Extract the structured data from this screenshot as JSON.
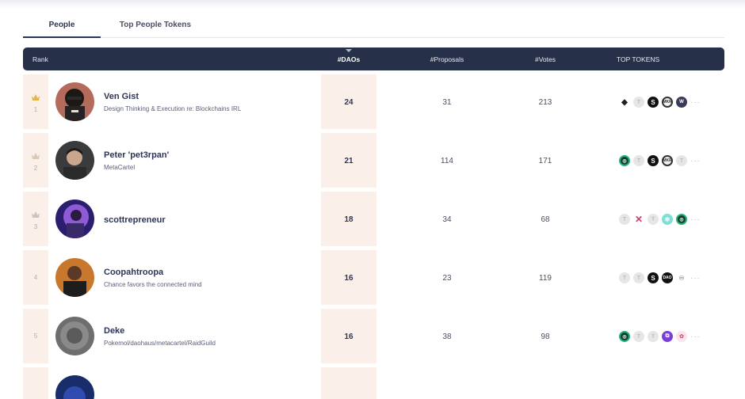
{
  "tabs": [
    {
      "label": "People"
    },
    {
      "label": "Top People Tokens"
    }
  ],
  "table": {
    "headers": {
      "rank": "Rank",
      "daos": "#DAOs",
      "proposals": "#Proposals",
      "votes": "#Votes",
      "tokens": "TOP TOKENS"
    },
    "sorted_by": "daos",
    "rows": [
      {
        "rank": "1",
        "name": "Ven Gist",
        "desc": "Design Thinking & Execution re: Blockchains IRL",
        "daos": "24",
        "proposals": "31",
        "votes": "213",
        "crown_color": "#e0b84a",
        "tokens": [
          "eth-icon",
          "unknown-token-icon",
          "snx-token-icon",
          "ring-token-icon",
          "navy-token-icon"
        ]
      },
      {
        "rank": "2",
        "name": "Peter 'pet3rpan'",
        "desc": "MetaCartel",
        "daos": "21",
        "proposals": "114",
        "votes": "171",
        "crown_color": "#d9c7b8",
        "tokens": [
          "green-token-icon",
          "unknown-token-icon",
          "snx-token-icon",
          "ring-token-icon",
          "unknown-token-icon"
        ]
      },
      {
        "rank": "3",
        "name": "scottrepreneur",
        "desc": "",
        "daos": "18",
        "proposals": "34",
        "votes": "68",
        "crown_color": "#c9c1c0",
        "tokens": [
          "unknown-token-icon",
          "pink-cross-token-icon",
          "unknown-token-icon",
          "teal-token-icon",
          "green-token-icon"
        ]
      },
      {
        "rank": "4",
        "name": "Coopahtroopa",
        "desc": "Chance favors the connected mind",
        "daos": "16",
        "proposals": "23",
        "votes": "119",
        "crown_color": "",
        "tokens": [
          "unknown-token-icon",
          "unknown-token-icon",
          "snx-token-icon",
          "dao-token-icon",
          "outline-token-icon"
        ]
      },
      {
        "rank": "5",
        "name": "Deke",
        "desc": "Pokemol/daohaus/metacartel/RaidGuild",
        "daos": "16",
        "proposals": "38",
        "votes": "98",
        "crown_color": "",
        "tokens": [
          "green-token-icon",
          "unknown-token-icon",
          "unknown-token-icon",
          "purple-token-icon",
          "rose-token-icon"
        ]
      }
    ],
    "more_label": "···",
    "token_glyphs": {
      "unknown": "T",
      "snx": "S",
      "dao": "DAO",
      "eth": "◆",
      "pink": "✕",
      "teal": "✲",
      "purple": "⧉",
      "ring": "MKR",
      "navy": "W",
      "outline": "♾",
      "rose": "✿",
      "green": "◎"
    }
  }
}
